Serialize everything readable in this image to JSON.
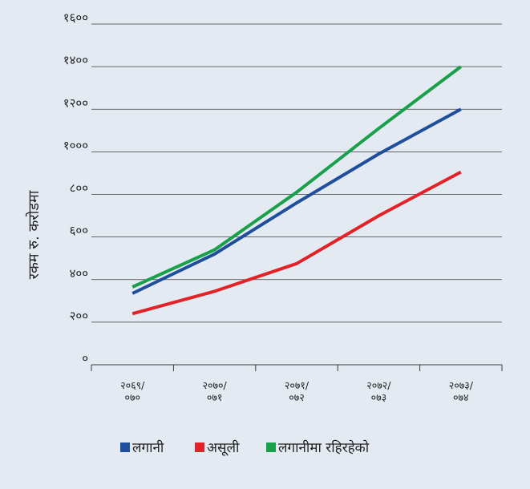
{
  "chart_data": {
    "type": "line",
    "title": "",
    "xlabel": "",
    "ylabel": "रकम रु. करोडमा",
    "categories": [
      [
        "२०६९/",
        "०७०"
      ],
      [
        "२०७०/",
        "०७१"
      ],
      [
        "२०७१/",
        "०७२"
      ],
      [
        "२०७२/",
        "०७३"
      ],
      [
        "२०७३/",
        "०७४"
      ]
    ],
    "ylim": [
      0,
      1600
    ],
    "yticks": [
      0,
      200,
      400,
      600,
      800,
      1000,
      1200,
      1400,
      1600
    ],
    "ytick_labels": [
      "०",
      "२००",
      "४००",
      "६००",
      "८००",
      "१०००",
      "१२००",
      "१४००",
      "१६००"
    ],
    "grid": "horizontal",
    "legend_position": "bottom",
    "series": [
      {
        "name": "लगानी",
        "color": "#1f4e9c",
        "values": [
          335,
          520,
          760,
          990,
          1200
        ]
      },
      {
        "name": "असूली",
        "color": "#e32228",
        "values": [
          240,
          345,
          475,
          700,
          905
        ]
      },
      {
        "name": "लगानीमा रहिरहेको",
        "color": "#1aa04a",
        "values": [
          365,
          540,
          810,
          1110,
          1400
        ]
      }
    ]
  }
}
